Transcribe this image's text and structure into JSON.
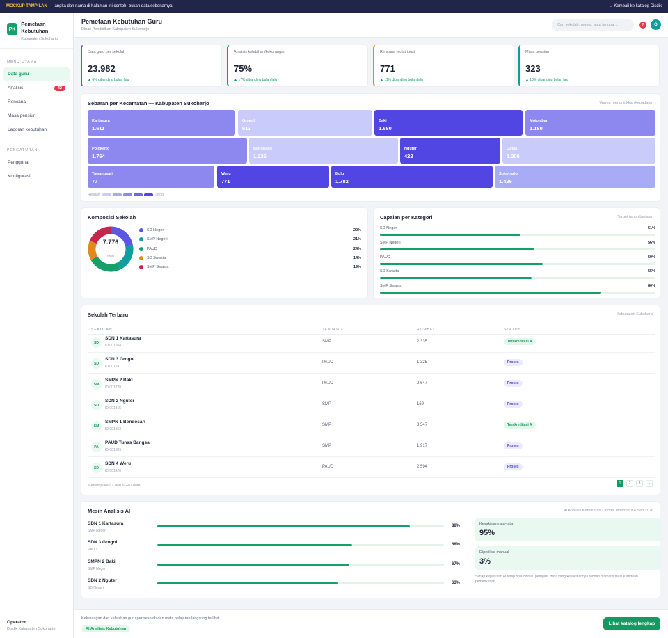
{
  "banner": {
    "tag": "MOCKUP TAMPILAN",
    "text": "— angka dan nama di halaman ini contoh, bukan data sebenarnya",
    "back_link": "← Kembali ke katalog Disdik"
  },
  "brand": {
    "logo": "PK",
    "title": "Pemetaan Kebutuhan",
    "subtitle": "Kabupaten Sukoharjo"
  },
  "sidebar": {
    "section_main": "MENU UTAMA",
    "items": [
      {
        "label": "Data guru",
        "active": true
      },
      {
        "label": "Analisis",
        "badge": "42"
      },
      {
        "label": "Rencana"
      },
      {
        "label": "Masa pensiun"
      },
      {
        "label": "Laporan kebutuhan"
      }
    ],
    "section_settings": "PENGATURAN",
    "settings_items": [
      {
        "label": "Pengguna"
      },
      {
        "label": "Konfigurasi"
      }
    ],
    "user": {
      "role": "Operator",
      "org": "Disdik Kabupaten Sukoharjo"
    }
  },
  "header": {
    "title": "Pemetaan Kebutuhan Guru",
    "subtitle": "Dinas Pendidikan Kabupaten Sukoharjo",
    "search_placeholder": "Cari sekolah, nomor, atau tanggal...",
    "notif_count": "7",
    "avatar": "O"
  },
  "stats": [
    {
      "label": "Data guru per sekolah",
      "value": "23.982",
      "change": "▲ 6% dibanding bulan lalu",
      "color": "#5b57e0"
    },
    {
      "label": "Analisis kelebihan/kekurangan",
      "value": "75%",
      "change": "▲ 17% dibanding bulan lalu",
      "color": "#139a62"
    },
    {
      "label": "Rencana redistribusi",
      "value": "771",
      "change": "▲ 11% dibanding bulan lalu",
      "color": "#e08a1c"
    },
    {
      "label": "Masa pensiun",
      "value": "323",
      "change": "▲ 10% dibanding bulan lalu",
      "color": "#0d9fa0"
    }
  ],
  "map": {
    "title": "Sebaran per Kecamatan — Kabupaten Sukoharjo",
    "note": "Warna menunjukkan kepadatan",
    "legend_low": "Rendah",
    "legend_high": "Tinggi",
    "districts": [
      {
        "name": "Kartasura",
        "value": "1.611",
        "shade": "#8c88ef"
      },
      {
        "name": "Grogol",
        "value": "613",
        "shade": "#c9cbfb"
      },
      {
        "name": "Baki",
        "value": "1.680",
        "shade": "#5145e3"
      },
      {
        "name": "Mojolaban",
        "value": "1.180",
        "shade": "#8c88ef"
      },
      {
        "name": "Polokarto",
        "value": "1.764",
        "shade": "#8c88ef"
      },
      {
        "name": "Bendosari",
        "value": "1.225",
        "shade": "#c9cbfb"
      },
      {
        "name": "Nguter",
        "value": "422",
        "shade": "#5145e3"
      },
      {
        "name": "Gatak",
        "value": "1.206",
        "shade": "#c9cbfb"
      },
      {
        "name": "Tawangsari",
        "value": "77",
        "shade": "#8c88ef"
      },
      {
        "name": "Weru",
        "value": "771",
        "shade": "#5145e3"
      },
      {
        "name": "Bulu",
        "value": "1.782",
        "shade": "#5145e3"
      },
      {
        "name": "Sukoharjo",
        "value": "1.426",
        "shade": "#a8abf5"
      }
    ]
  },
  "composition": {
    "title": "Komposisi Sekolah",
    "total": "7.776",
    "total_label": "total",
    "items": [
      {
        "label": "SD Negeri",
        "pct": "22%",
        "value": 22,
        "color": "#5b57e0"
      },
      {
        "label": "SMP Negeri",
        "pct": "21%",
        "value": 21,
        "color": "#0d9fa0"
      },
      {
        "label": "PAUD",
        "pct": "24%",
        "value": 24,
        "color": "#15a06a"
      },
      {
        "label": "SD Swasta",
        "pct": "14%",
        "value": 14,
        "color": "#e08a1c"
      },
      {
        "label": "SMP Swasta",
        "pct": "19%",
        "value": 19,
        "color": "#c7254e"
      }
    ]
  },
  "achievement": {
    "title": "Capaian per Kategori",
    "note": "Target tahun berjalan",
    "items": [
      {
        "label": "SD Negeri",
        "pct": "51%",
        "fraction": 0.51
      },
      {
        "label": "SMP Negeri",
        "pct": "56%",
        "fraction": 0.56
      },
      {
        "label": "PAUD",
        "pct": "59%",
        "fraction": 0.59
      },
      {
        "label": "SD Swasta",
        "pct": "55%",
        "fraction": 0.55
      },
      {
        "label": "SMP Swasta",
        "pct": "80%",
        "fraction": 0.8
      }
    ]
  },
  "table": {
    "title": "Sekolah Terbaru",
    "note": "Kabupaten Sukoharjo",
    "columns": [
      "SEKOLAH",
      "JENJANG",
      "ROMBEL",
      "STATUS"
    ],
    "rows": [
      {
        "abbr": "SD",
        "name": "SDN 1 Kartasura",
        "id": "ID 001204",
        "level": "SMP",
        "rombel": "2.335",
        "status": "Terakreditasi A",
        "ok": true
      },
      {
        "abbr": "SD",
        "name": "SDN 3 Grogol",
        "id": "ID 001241",
        "level": "PAUD",
        "rombel": "1.325",
        "status": "Proses",
        "ok": false
      },
      {
        "abbr": "SM",
        "name": "SMPN 2 Baki",
        "id": "ID 001278",
        "level": "PAUD",
        "rombel": "2.647",
        "status": "Proses",
        "ok": false
      },
      {
        "abbr": "SD",
        "name": "SDN 2 Nguter",
        "id": "ID 001315",
        "level": "SMP",
        "rombel": "169",
        "status": "Proses",
        "ok": false
      },
      {
        "abbr": "SM",
        "name": "SMPN 1 Bendosari",
        "id": "ID 001352",
        "level": "SMP",
        "rombel": "3.547",
        "status": "Terakreditasi A",
        "ok": true
      },
      {
        "abbr": "PA",
        "name": "PAUD Tunas Bangsa",
        "id": "ID 001389",
        "level": "SMP",
        "rombel": "1.917",
        "status": "Proses",
        "ok": false
      },
      {
        "abbr": "SD",
        "name": "SDN 4 Weru",
        "id": "ID 001426",
        "level": "PAUD",
        "rombel": "2.594",
        "status": "Proses",
        "ok": false
      }
    ],
    "summary": "Menampilkan 7 dari 6.240 data",
    "pages": [
      "1",
      "2",
      "3",
      "›"
    ]
  },
  "ai": {
    "title": "Mesin Analisis AI",
    "note": "AI Analisis Kebutuhan · model diperbarui 4 Sep 2026",
    "rows": [
      {
        "name": "SDN 1 Kartasura",
        "type": "SMP Negeri",
        "pct": "88%",
        "fraction": 0.88
      },
      {
        "name": "SDN 3 Grogol",
        "type": "PAUD",
        "pct": "68%",
        "fraction": 0.68
      },
      {
        "name": "SMPN 2 Baki",
        "type": "SMP Negeri",
        "pct": "67%",
        "fraction": 0.67
      },
      {
        "name": "SDN 2 Nguter",
        "type": "SD Negeri",
        "pct": "63%",
        "fraction": 0.63
      }
    ],
    "confidence_label": "Keyakinan rata-rata",
    "confidence_value": "95%",
    "manual_label": "Diperiksa manual",
    "manual_value": "3%",
    "disclaimer": "Setiap keputusan AI tetap bisa ditinjau petugas. Hasil yang keyakinannya rendah otomatis masuk antrean pemeriksaan."
  },
  "footer": {
    "text": "Kekurangan dan kelebihan guru per sekolah dan mata pelajaran langsung terlihat.",
    "tag": "AI Analisis Kebutuhan",
    "button": "Lihat katalog lengkap"
  }
}
